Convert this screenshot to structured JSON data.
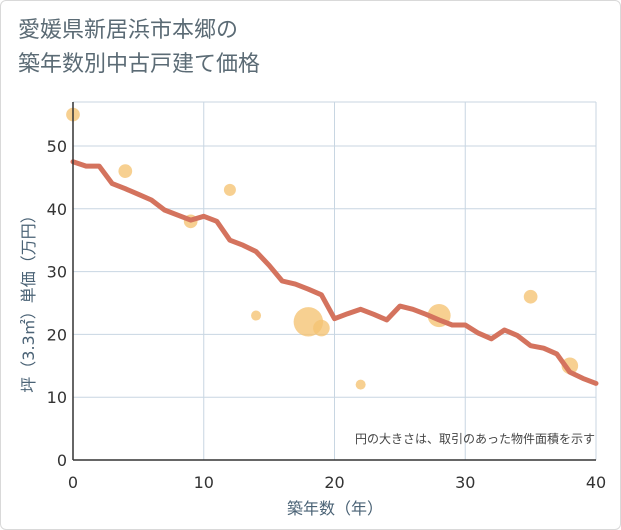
{
  "chart_data": {
    "type": "scatter",
    "title": "愛媛県新居浜市本郷の築年数別中古戸建て価格",
    "title_lines": [
      "愛媛県新居浜市本郷の",
      "築年数別中古戸建て価格"
    ],
    "xlabel": "築年数（年）",
    "ylabel": "坪（3.3㎡）単価（万円）",
    "xlim": [
      0,
      40
    ],
    "ylim": [
      0,
      57
    ],
    "x_ticks": [
      0,
      10,
      20,
      30,
      40
    ],
    "y_ticks": [
      0,
      10,
      20,
      30,
      40,
      50
    ],
    "grid": true,
    "annotation": "円の大きさは、取引のあった物件面積を示す",
    "colors": {
      "bubble": "#f5c372",
      "line": "#d4735e",
      "grid": "#c8d6e2",
      "axis": "#333333"
    },
    "series": [
      {
        "name": "transactions",
        "kind": "bubble",
        "points": [
          {
            "x": 0,
            "y": 55,
            "size": 2
          },
          {
            "x": 4,
            "y": 46,
            "size": 2
          },
          {
            "x": 9,
            "y": 38,
            "size": 2
          },
          {
            "x": 12,
            "y": 43,
            "size": 1.5
          },
          {
            "x": 14,
            "y": 23,
            "size": 1
          },
          {
            "x": 18,
            "y": 22,
            "size": 10
          },
          {
            "x": 19,
            "y": 21,
            "size": 3
          },
          {
            "x": 22,
            "y": 12,
            "size": 1
          },
          {
            "x": 28,
            "y": 23,
            "size": 6
          },
          {
            "x": 35,
            "y": 26,
            "size": 2
          },
          {
            "x": 38,
            "y": 15,
            "size": 3
          }
        ]
      },
      {
        "name": "trend",
        "kind": "line",
        "x": [
          0,
          1,
          2,
          3,
          4,
          5,
          6,
          7,
          8,
          9,
          10,
          11,
          12,
          13,
          14,
          15,
          16,
          17,
          18,
          19,
          20,
          21,
          22,
          23,
          24,
          25,
          26,
          27,
          28,
          29,
          30,
          31,
          32,
          33,
          34,
          35,
          36,
          37,
          38,
          39,
          40
        ],
        "y": [
          47.5,
          46.8,
          46.8,
          44.0,
          43.2,
          42.3,
          41.4,
          39.8,
          39.0,
          38.2,
          38.8,
          38.0,
          35.0,
          34.2,
          33.2,
          31.0,
          28.5,
          28.0,
          27.2,
          26.3,
          22.5,
          23.3,
          24.0,
          23.2,
          22.3,
          24.5,
          24.0,
          23.2,
          22.3,
          21.5,
          21.5,
          20.2,
          19.3,
          20.7,
          19.8,
          18.2,
          17.8,
          16.9,
          14.0,
          13.0,
          12.2
        ]
      }
    ]
  }
}
